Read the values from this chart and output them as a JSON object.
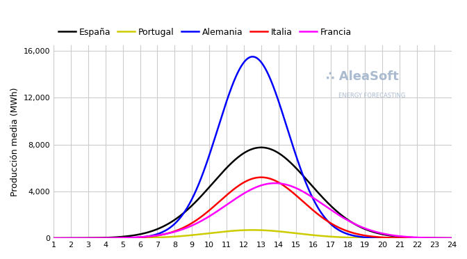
{
  "title": "",
  "ylabel": "Producción media (MWh)",
  "x_ticks": [
    1,
    2,
    3,
    4,
    5,
    6,
    7,
    8,
    9,
    10,
    11,
    12,
    13,
    14,
    15,
    16,
    17,
    18,
    19,
    20,
    21,
    22,
    23,
    24
  ],
  "ylim": [
    0,
    16500
  ],
  "yticks": [
    0,
    4000,
    8000,
    12000,
    16000
  ],
  "background_color": "#ffffff",
  "grid_color": "#cccccc",
  "series": [
    {
      "label": "España",
      "color": "#000000",
      "peak": 7750,
      "peak_hour": 13.0,
      "sigma": 2.8
    },
    {
      "label": "Portugal",
      "color": "#cccc00",
      "peak": 700,
      "peak_hour": 12.5,
      "sigma": 2.5
    },
    {
      "label": "Alemania",
      "color": "#0000ff",
      "peak": 15500,
      "peak_hour": 12.5,
      "sigma": 2.0
    },
    {
      "label": "Italia",
      "color": "#ff0000",
      "peak": 5200,
      "peak_hour": 13.0,
      "sigma": 2.4
    },
    {
      "label": "Francia",
      "color": "#ff00ff",
      "peak": 4700,
      "peak_hour": 13.8,
      "sigma": 2.8
    }
  ],
  "watermark_text": "AleaSoft",
  "watermark_dots": "...",
  "watermark_sub": "ENERGY FORECASTING",
  "watermark_color": "#aabbd0"
}
